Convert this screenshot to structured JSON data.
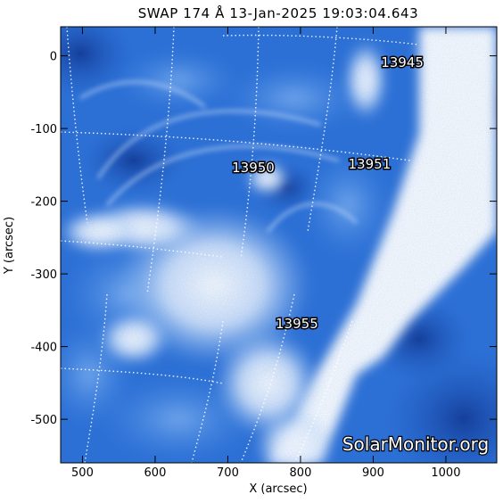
{
  "chart_data": {
    "type": "heatmap",
    "title": "SWAP 174 Å 13-Jan-2025 19:03:04.643",
    "xlabel": "X (arcsec)",
    "ylabel": "Y (arcsec)",
    "xlim": [
      470,
      1070
    ],
    "ylim": [
      -560,
      40
    ],
    "x_ticks": [
      500,
      600,
      700,
      800,
      900,
      1000
    ],
    "y_ticks": [
      0,
      -100,
      -200,
      -300,
      -400,
      -500
    ],
    "colormap": [
      "#0a2a7a",
      "#1c57c0",
      "#3f86e6",
      "#8ab8f3",
      "#ffffff"
    ],
    "active_regions": [
      {
        "label": "13945",
        "x": 940,
        "y": -15
      },
      {
        "label": "13950",
        "x": 735,
        "y": -160
      },
      {
        "label": "13951",
        "x": 895,
        "y": -155
      },
      {
        "label": "13955",
        "x": 795,
        "y": -375
      }
    ],
    "watermark": "SolarMonitor.org"
  }
}
